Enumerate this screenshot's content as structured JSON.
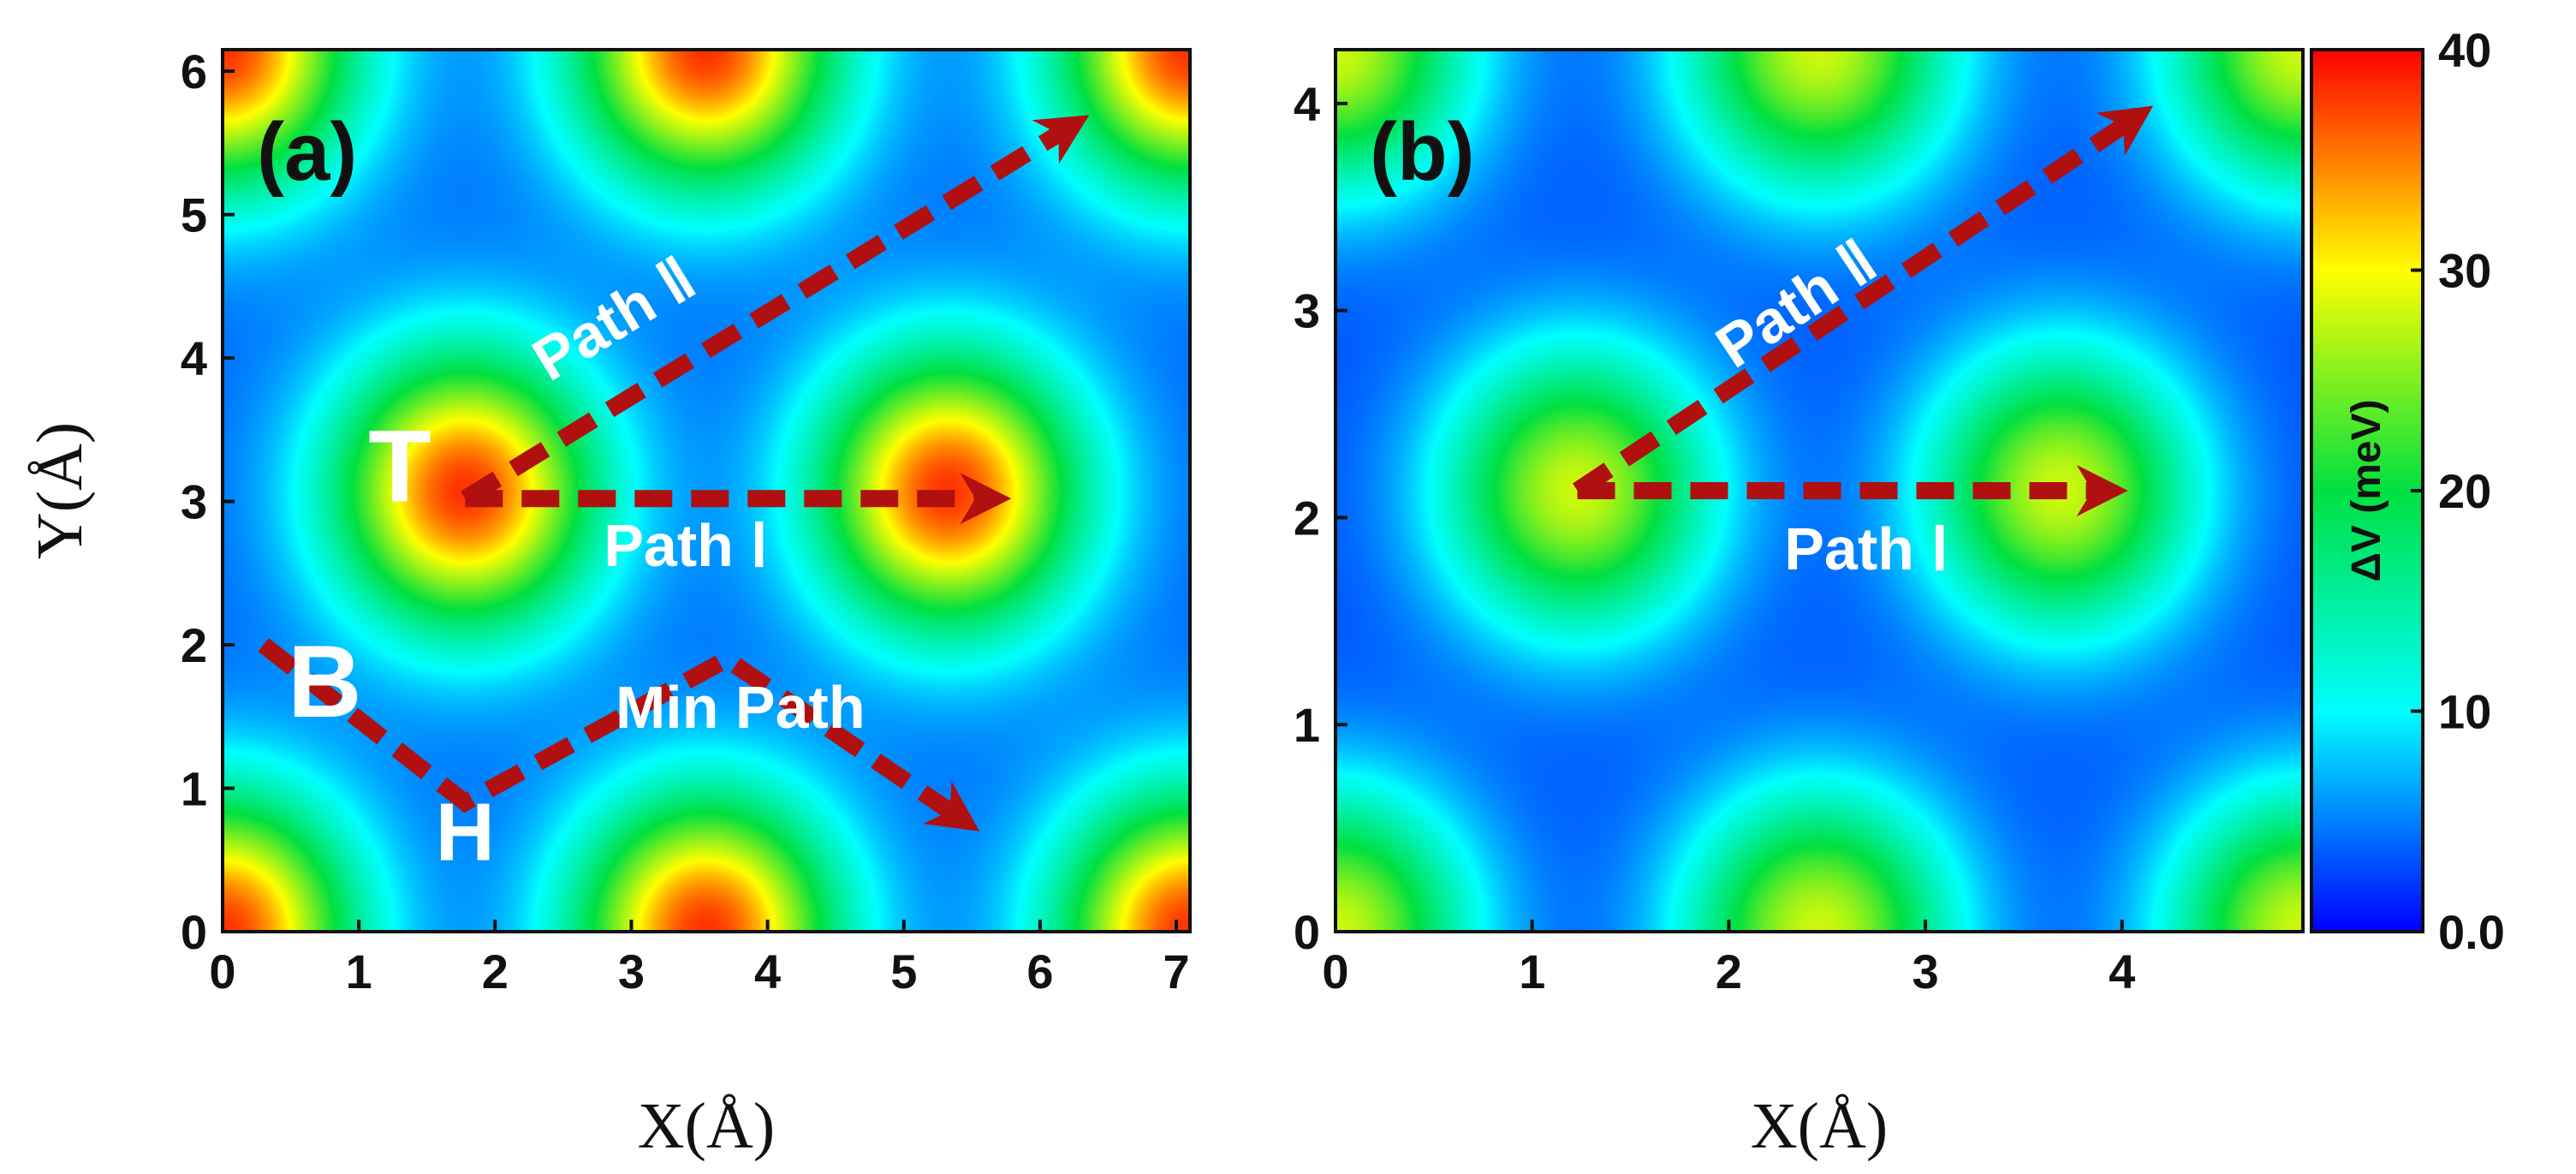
{
  "chart_data": [
    {
      "type": "heatmap",
      "panel_label": "(a)",
      "xlabel": "X(Å)",
      "ylabel": "Y(Å)",
      "xlim": [
        0,
        7.1
      ],
      "ylim": [
        0,
        6.15
      ],
      "xticks": [
        "0",
        "1",
        "2",
        "3",
        "4",
        "5",
        "6",
        "7"
      ],
      "yticks": [
        "0",
        "1",
        "2",
        "3",
        "4",
        "5",
        "6"
      ],
      "maxima_positions": [
        [
          0,
          0
        ],
        [
          3.55,
          0
        ],
        [
          7.1,
          0
        ],
        [
          1.78,
          3.07
        ],
        [
          5.33,
          3.07
        ],
        [
          0,
          6.15
        ],
        [
          3.55,
          6.15
        ],
        [
          7.1,
          6.15
        ]
      ],
      "maxima_value_meV": 38,
      "peak_radius": 1.35,
      "background_value_meV": 4,
      "annotations": [
        {
          "text": "T",
          "x": 1.3,
          "y": 3.0
        },
        {
          "text": "B",
          "x": 0.75,
          "y": 1.5
        },
        {
          "text": "H",
          "x": 1.78,
          "y": 0.5
        },
        {
          "text": "Path Ⅰ",
          "x": 3.4,
          "y": 2.55
        },
        {
          "text": "Path Ⅱ",
          "x": 2.95,
          "y": 4.15
        },
        {
          "text": "Min Path",
          "x": 3.8,
          "y": 1.42
        }
      ],
      "paths": [
        {
          "name": "Path Ⅰ",
          "points": [
            [
              1.78,
              3.02
            ],
            [
              5.6,
              3.02
            ]
          ]
        },
        {
          "name": "Path Ⅱ",
          "points": [
            [
              1.78,
              3.02
            ],
            [
              6.2,
              5.6
            ]
          ]
        },
        {
          "name": "Min Path",
          "points": [
            [
              0.3,
              2.0
            ],
            [
              1.78,
              0.9
            ],
            [
              3.7,
              1.9
            ],
            [
              5.4,
              0.8
            ]
          ]
        }
      ]
    },
    {
      "type": "heatmap",
      "panel_label": "(b)",
      "xlabel": "X(Å)",
      "ylabel": "",
      "xlim": [
        0,
        4.92
      ],
      "ylim": [
        0,
        4.26
      ],
      "xticks": [
        "0",
        "1",
        "2",
        "3",
        "4"
      ],
      "yticks": [
        "0",
        "1",
        "2",
        "3",
        "4"
      ],
      "maxima_positions": [
        [
          0,
          0
        ],
        [
          2.46,
          0
        ],
        [
          4.92,
          0
        ],
        [
          1.23,
          2.13
        ],
        [
          3.69,
          2.13
        ],
        [
          0,
          4.26
        ],
        [
          2.46,
          4.26
        ],
        [
          4.92,
          4.26
        ]
      ],
      "maxima_value_meV": 28,
      "peak_radius": 0.95,
      "background_value_meV": 3,
      "annotations": [
        {
          "text": "Path Ⅰ",
          "x": 2.7,
          "y": 1.75
        },
        {
          "text": "Path Ⅱ",
          "x": 2.4,
          "y": 2.95
        }
      ],
      "paths": [
        {
          "name": "Path Ⅰ",
          "points": [
            [
              1.23,
              2.13
            ],
            [
              3.9,
              2.13
            ]
          ]
        },
        {
          "name": "Path Ⅱ",
          "points": [
            [
              1.23,
              2.13
            ],
            [
              4.05,
              3.92
            ]
          ]
        }
      ]
    }
  ],
  "colorbar": {
    "label": "ΔV (meV)",
    "min": 0,
    "max": 40,
    "ticks": [
      "0.0",
      "10",
      "20",
      "30",
      "40"
    ],
    "colors": [
      "#0000ff",
      "#00ffff",
      "#00e040",
      "#ffff00",
      "#ff0000"
    ]
  },
  "path_color": "#b01010"
}
